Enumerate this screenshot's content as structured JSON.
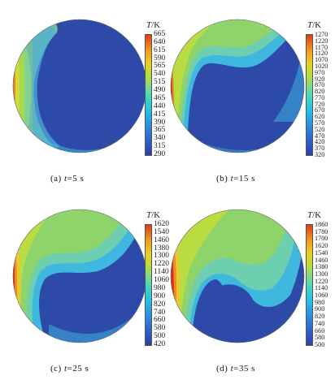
{
  "panels": [
    {
      "caption_prefix": "(a)",
      "caption_var": "t",
      "caption_value": "=5 s",
      "unit_var": "T",
      "unit": "/K",
      "ticks": [
        "665",
        "640",
        "615",
        "590",
        "565",
        "540",
        "515",
        "490",
        "465",
        "440",
        "415",
        "390",
        "365",
        "340",
        "315",
        "290"
      ]
    },
    {
      "caption_prefix": "(b)",
      "caption_var": "t",
      "caption_value": "=15 s",
      "unit_var": "T",
      "unit": "/K",
      "ticks": [
        "1270",
        "1220",
        "1170",
        "1120",
        "1070",
        "1020",
        "970",
        "920",
        "870",
        "820",
        "770",
        "720",
        "670",
        "620",
        "570",
        "520",
        "470",
        "420",
        "370",
        "320"
      ]
    },
    {
      "caption_prefix": "(c)",
      "caption_var": "t",
      "caption_value": "=25 s",
      "unit_var": "T",
      "unit": "/K",
      "ticks": [
        "1620",
        "1540",
        "1460",
        "1380",
        "1300",
        "1220",
        "1140",
        "1060",
        "980",
        "900",
        "820",
        "740",
        "660",
        "580",
        "500",
        "420"
      ]
    },
    {
      "caption_prefix": "(d)",
      "caption_var": "t",
      "caption_value": "=35 s",
      "unit_var": "T",
      "unit": "/K",
      "ticks": [
        "1860",
        "1780",
        "1700",
        "1620",
        "1540",
        "1460",
        "1380",
        "1300",
        "1220",
        "1140",
        "1060",
        "980",
        "900",
        "820",
        "740",
        "660",
        "580",
        "500"
      ]
    }
  ],
  "colors": {
    "cold": "#2e4aa8",
    "cool": "#3a8fd8",
    "cyan": "#3fd0e0",
    "green": "#8fd46a",
    "yellow": "#d8d83a",
    "orange": "#f08a20",
    "hot": "#d8301a"
  }
}
